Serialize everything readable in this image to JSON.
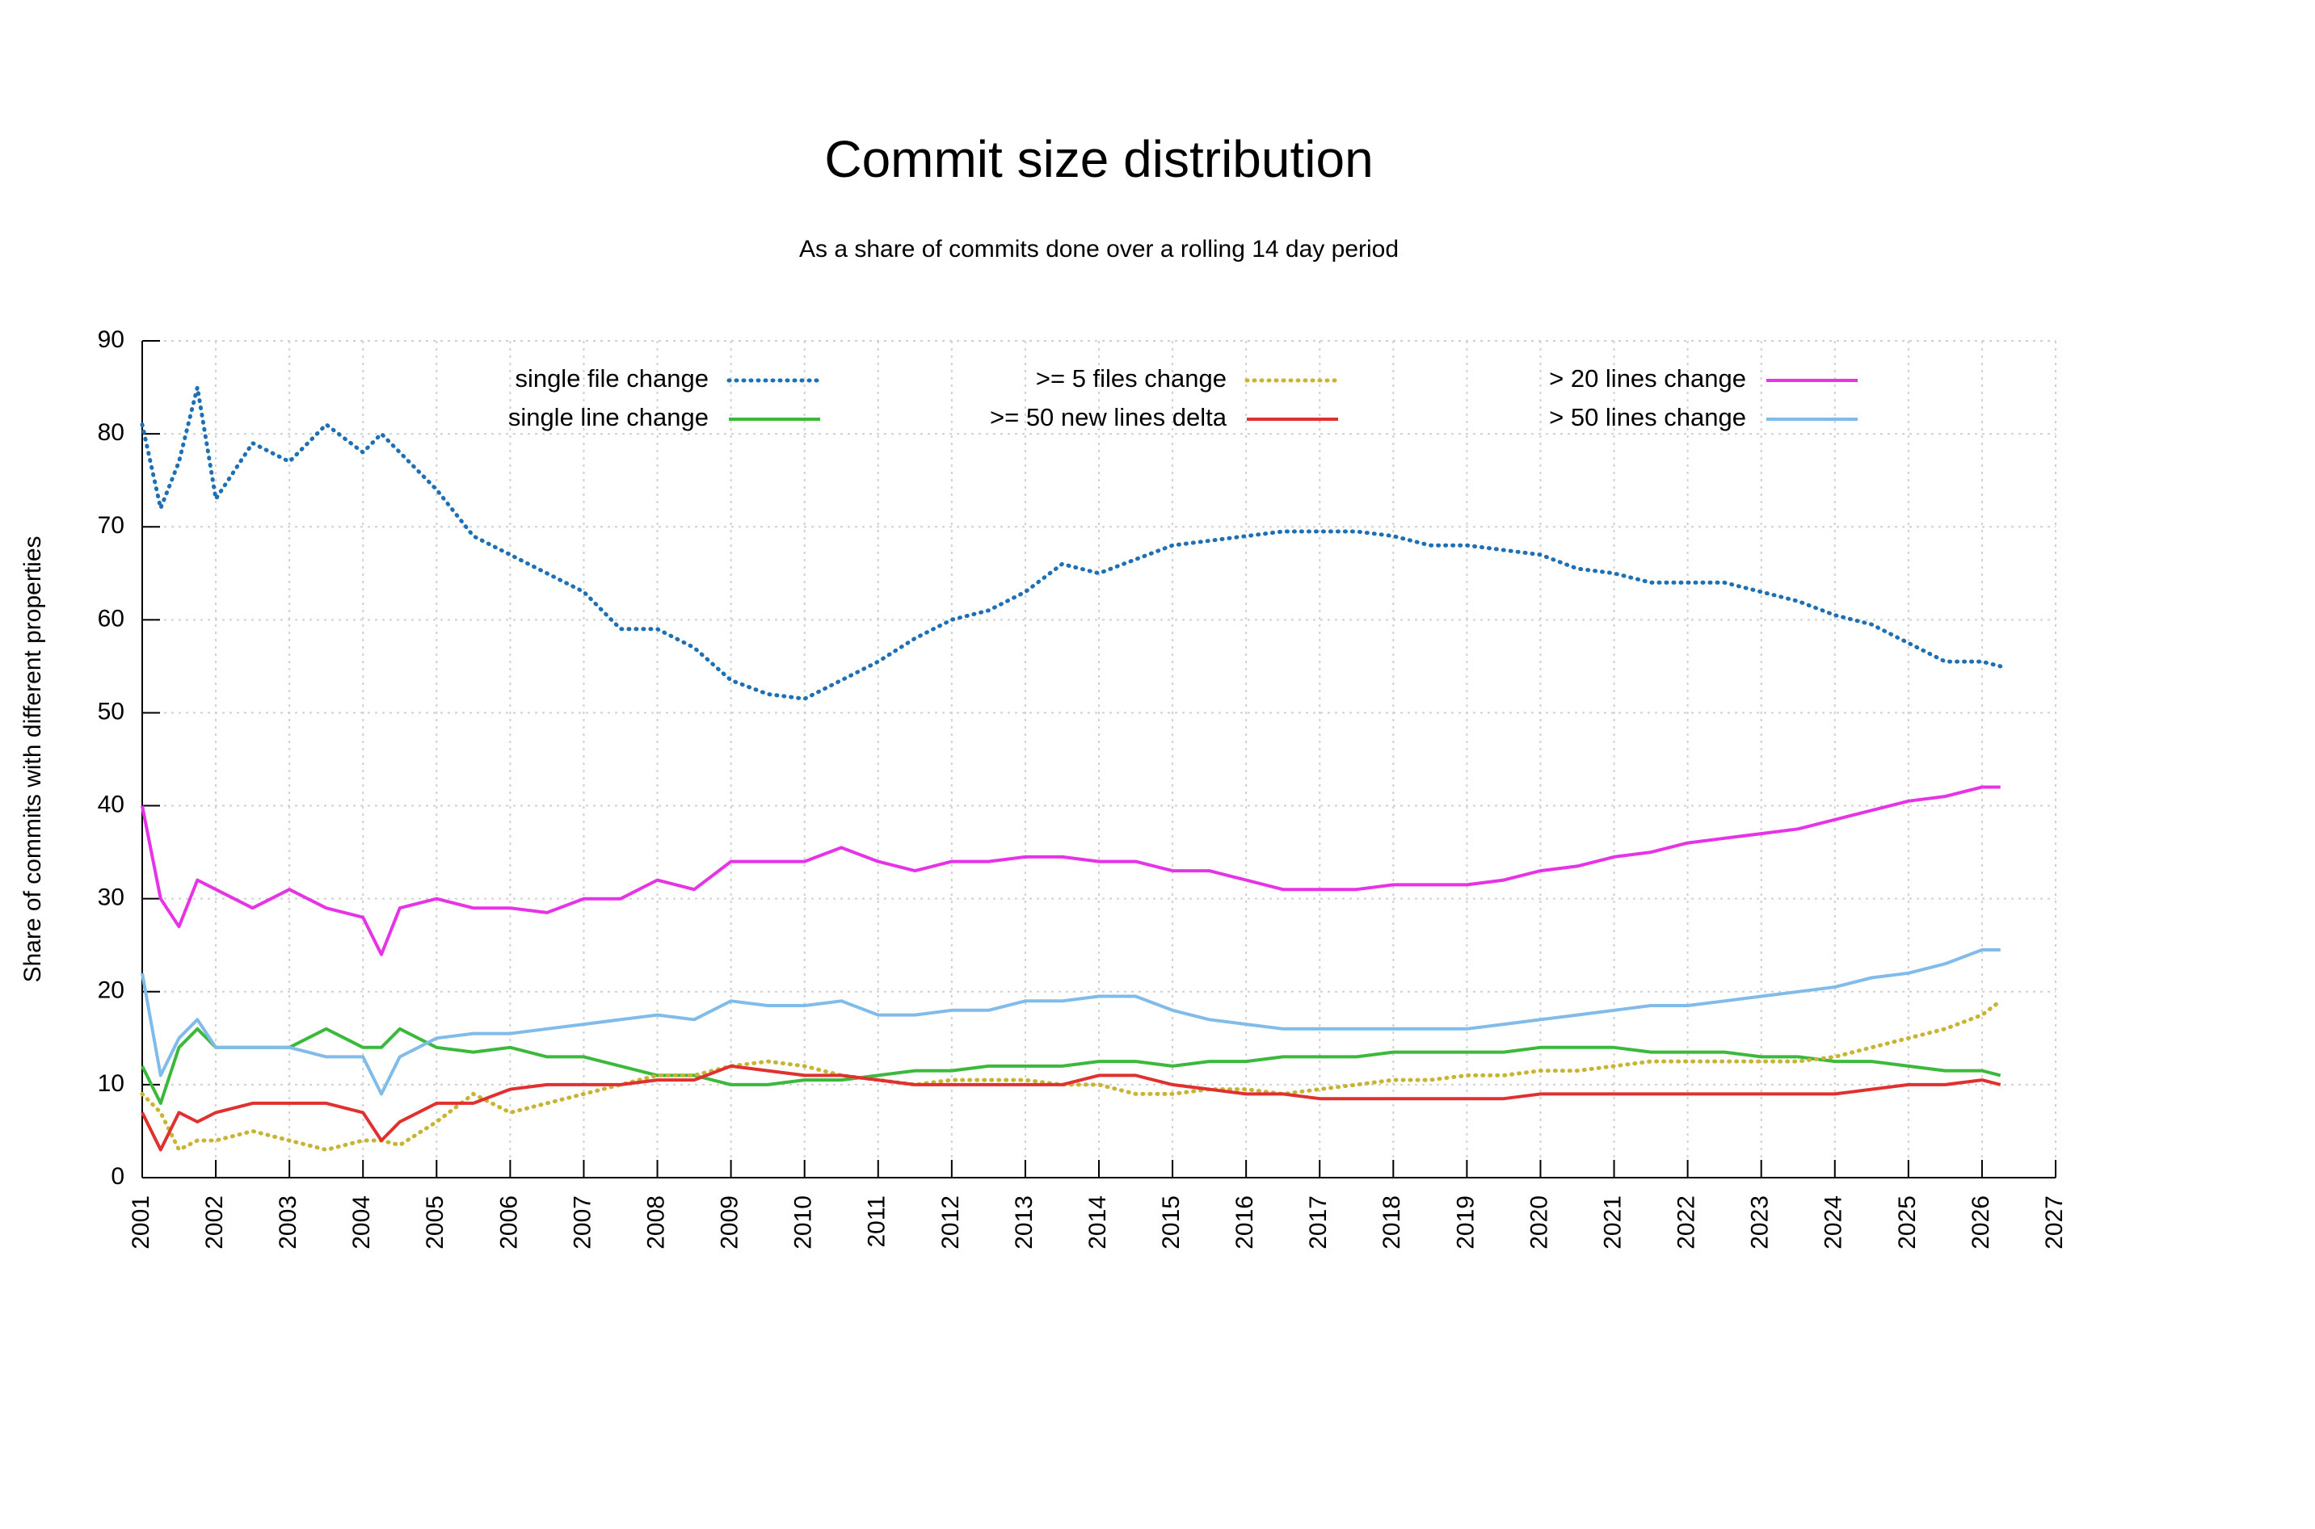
{
  "chart_data": {
    "type": "line",
    "title": "Commit size distribution",
    "subtitle": "As a share of commits done over a rolling 14 day period",
    "y_label": "Share of commits with different properties",
    "x": [
      2001,
      2001.25,
      2001.5,
      2001.75,
      2002,
      2002.5,
      2003,
      2003.5,
      2004,
      2004.25,
      2004.5,
      2005,
      2005.5,
      2006,
      2006.5,
      2007,
      2007.5,
      2008,
      2008.5,
      2009,
      2009.5,
      2010,
      2010.5,
      2011,
      2011.5,
      2012,
      2012.5,
      2013,
      2013.5,
      2014,
      2014.5,
      2015,
      2015.5,
      2016,
      2016.5,
      2017,
      2017.5,
      2018,
      2018.5,
      2019,
      2019.5,
      2020,
      2020.5,
      2021,
      2021.5,
      2022,
      2022.5,
      2023,
      2023.5,
      2024,
      2024.5,
      2025,
      2025.5,
      2026,
      2026.25
    ],
    "series": [
      {
        "name": "single file change",
        "color": "#1f6fb4",
        "style": "dotted",
        "values": [
          81,
          72,
          77,
          85,
          73,
          79,
          77,
          81,
          78,
          80,
          78,
          74,
          69,
          67,
          65,
          63,
          59,
          59,
          57,
          53.5,
          52,
          51.5,
          53.5,
          55.5,
          58,
          60,
          61,
          63,
          66,
          65,
          66.5,
          68,
          68.5,
          69,
          69.5,
          69.5,
          69.5,
          69,
          68,
          68,
          67.5,
          67,
          65.5,
          65,
          64,
          64,
          64,
          63,
          62,
          60.5,
          59.5,
          57.5,
          55.5,
          55.5,
          55
        ]
      },
      {
        "name": "single line change",
        "color": "#3cb83c",
        "style": "solid",
        "values": [
          12,
          8,
          14,
          16,
          14,
          14,
          14,
          16,
          14,
          14,
          16,
          14,
          13.5,
          14,
          13,
          13,
          12,
          11,
          11,
          10,
          10,
          10.5,
          10.5,
          11,
          11.5,
          11.5,
          12,
          12,
          12,
          12.5,
          12.5,
          12,
          12.5,
          12.5,
          13,
          13,
          13,
          13.5,
          13.5,
          13.5,
          13.5,
          14,
          14,
          14,
          13.5,
          13.5,
          13.5,
          13,
          13,
          12.5,
          12.5,
          12,
          11.5,
          11.5,
          11
        ]
      },
      {
        "name": ">= 5 files change",
        "color": "#c8b432",
        "style": "dotted",
        "values": [
          9,
          7,
          3,
          4,
          4,
          5,
          4,
          3,
          4,
          4,
          3.5,
          6,
          9,
          7,
          8,
          9,
          10,
          11,
          11,
          12,
          12.5,
          12,
          11,
          10.5,
          10,
          10.5,
          10.5,
          10.5,
          10,
          10,
          9,
          9,
          9.5,
          9.5,
          9,
          9.5,
          10,
          10.5,
          10.5,
          11,
          11,
          11.5,
          11.5,
          12,
          12.5,
          12.5,
          12.5,
          12.5,
          12.5,
          13,
          14,
          15,
          16,
          17.5,
          19
        ]
      },
      {
        "name": ">= 50 new lines delta",
        "color": "#e03030",
        "style": "solid",
        "values": [
          7,
          3,
          7,
          6,
          7,
          8,
          8,
          8,
          7,
          4,
          6,
          8,
          8,
          9.5,
          10,
          10,
          10,
          10.5,
          10.5,
          12,
          11.5,
          11,
          11,
          10.5,
          10,
          10,
          10,
          10,
          10,
          11,
          11,
          10,
          9.5,
          9,
          9,
          8.5,
          8.5,
          8.5,
          8.5,
          8.5,
          8.5,
          9,
          9,
          9,
          9,
          9,
          9,
          9,
          9,
          9,
          9.5,
          10,
          10,
          10.5,
          10
        ]
      },
      {
        "name": "> 20 lines change",
        "color": "#e633e6",
        "style": "solid",
        "values": [
          40,
          30,
          27,
          32,
          31,
          29,
          31,
          29,
          28,
          24,
          29,
          30,
          29,
          29,
          28.5,
          30,
          30,
          32,
          31,
          34,
          34,
          34,
          35.5,
          34,
          33,
          34,
          34,
          34.5,
          34.5,
          34,
          34,
          33,
          33,
          32,
          31,
          31,
          31,
          31.5,
          31.5,
          31.5,
          32,
          33,
          33.5,
          34.5,
          35,
          36,
          36.5,
          37,
          37.5,
          38.5,
          39.5,
          40.5,
          41,
          42,
          42
        ]
      },
      {
        "name": "> 50 lines change",
        "color": "#80bbea",
        "style": "solid",
        "values": [
          22,
          11,
          15,
          17,
          14,
          14,
          14,
          13,
          13,
          9,
          13,
          15,
          15.5,
          15.5,
          16,
          16.5,
          17,
          17.5,
          17,
          19,
          18.5,
          18.5,
          19,
          17.5,
          17.5,
          18,
          18,
          19,
          19,
          19.5,
          19.5,
          18,
          17,
          16.5,
          16,
          16,
          16,
          16,
          16,
          16,
          16.5,
          17,
          17.5,
          18,
          18.5,
          18.5,
          19,
          19.5,
          20,
          20.5,
          21.5,
          22,
          23,
          24.5,
          24.5
        ]
      }
    ],
    "xlim": [
      2001,
      2027
    ],
    "xticks": [
      2001,
      2002,
      2003,
      2004,
      2005,
      2006,
      2007,
      2008,
      2009,
      2010,
      2011,
      2012,
      2013,
      2014,
      2015,
      2016,
      2017,
      2018,
      2019,
      2020,
      2021,
      2022,
      2023,
      2024,
      2025,
      2026,
      2027
    ],
    "ylim": [
      0,
      90
    ],
    "yticks": [
      0,
      10,
      20,
      30,
      40,
      50,
      60,
      70,
      80,
      90
    ],
    "grid": true
  }
}
